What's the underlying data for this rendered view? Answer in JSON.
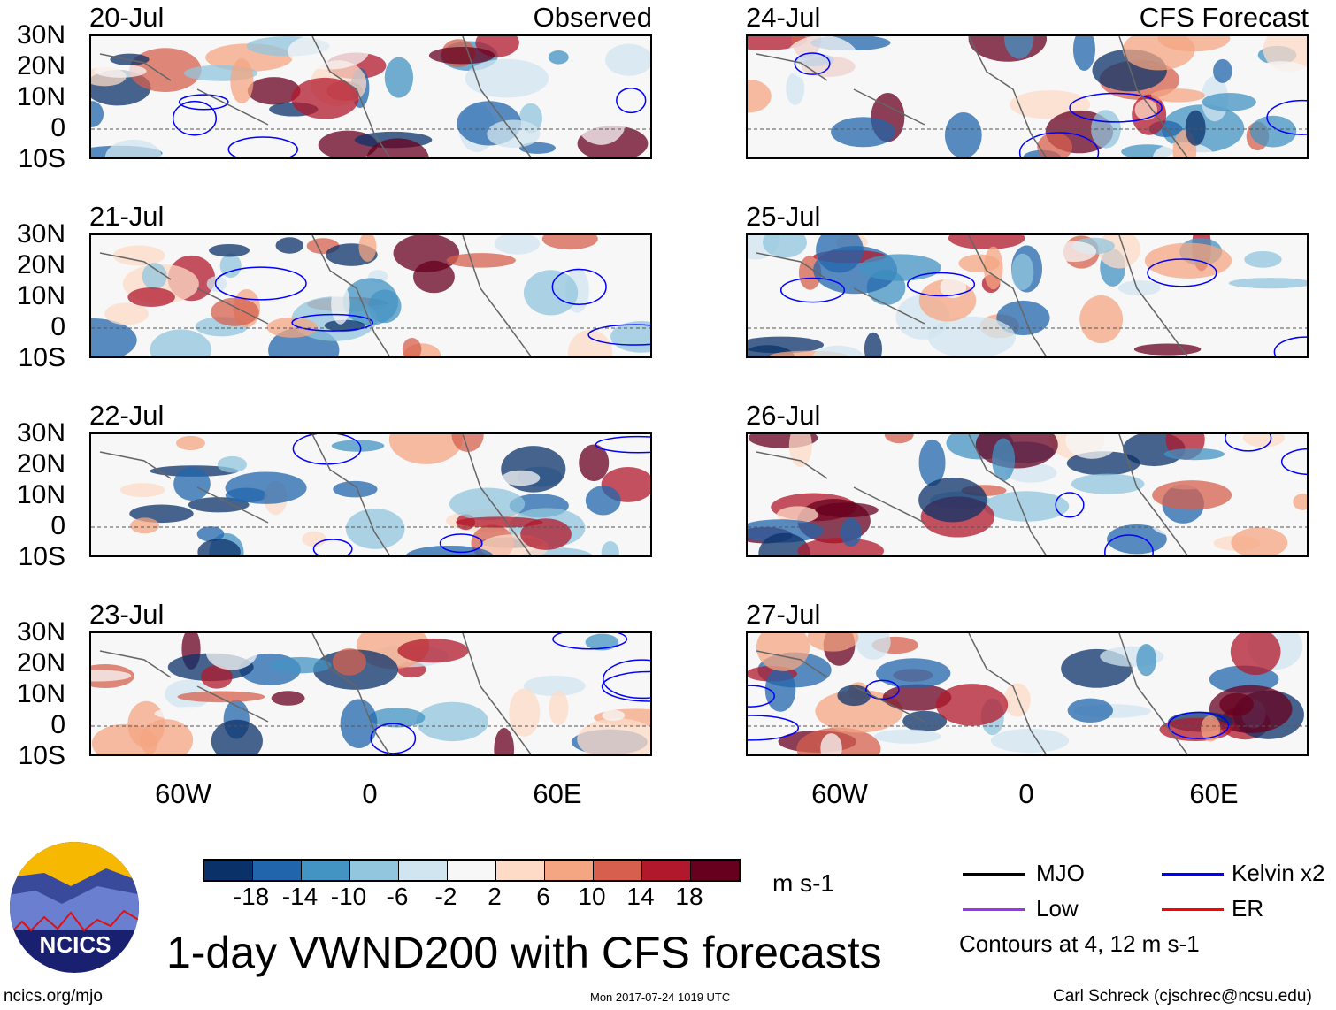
{
  "columns": {
    "left_title": "Observed",
    "right_title": "CFS Forecast"
  },
  "panels_left": [
    "20-Jul",
    "21-Jul",
    "22-Jul",
    "23-Jul"
  ],
  "panels_right": [
    "24-Jul",
    "25-Jul",
    "26-Jul",
    "27-Jul"
  ],
  "lat_labels": [
    "30N",
    "20N",
    "10N",
    "0",
    "10S"
  ],
  "lon_labels": [
    "60W",
    "0",
    "60E"
  ],
  "colorbar": {
    "colors": [
      "#0b3169",
      "#2166ac",
      "#4393c3",
      "#92c5de",
      "#d1e5f0",
      "#f7f7f7",
      "#fddbc7",
      "#f4a582",
      "#d6604d",
      "#b2182b",
      "#67001f"
    ],
    "ticks": [
      "-18",
      "-14",
      "-10",
      "-6",
      "-2",
      "2",
      "6",
      "10",
      "14",
      "18"
    ],
    "units": "m s-1"
  },
  "legend": {
    "items": [
      {
        "label": "MJO",
        "color": "#000000"
      },
      {
        "label": "Kelvin x2",
        "color": "#0000ff"
      },
      {
        "label": "Low",
        "color": "#9933ee"
      },
      {
        "label": "ER",
        "color": "#ff0000"
      }
    ],
    "note": "Contours at 4, 12 m s-1"
  },
  "logo_text": "NCICS",
  "title": "1-day VWND200 with CFS forecasts",
  "footer": {
    "left": "ncics.org/mjo",
    "center": "Mon 2017-07-24 1019 UTC",
    "right": "Carl Schreck (cjschrec@ncsu.edu)"
  }
}
